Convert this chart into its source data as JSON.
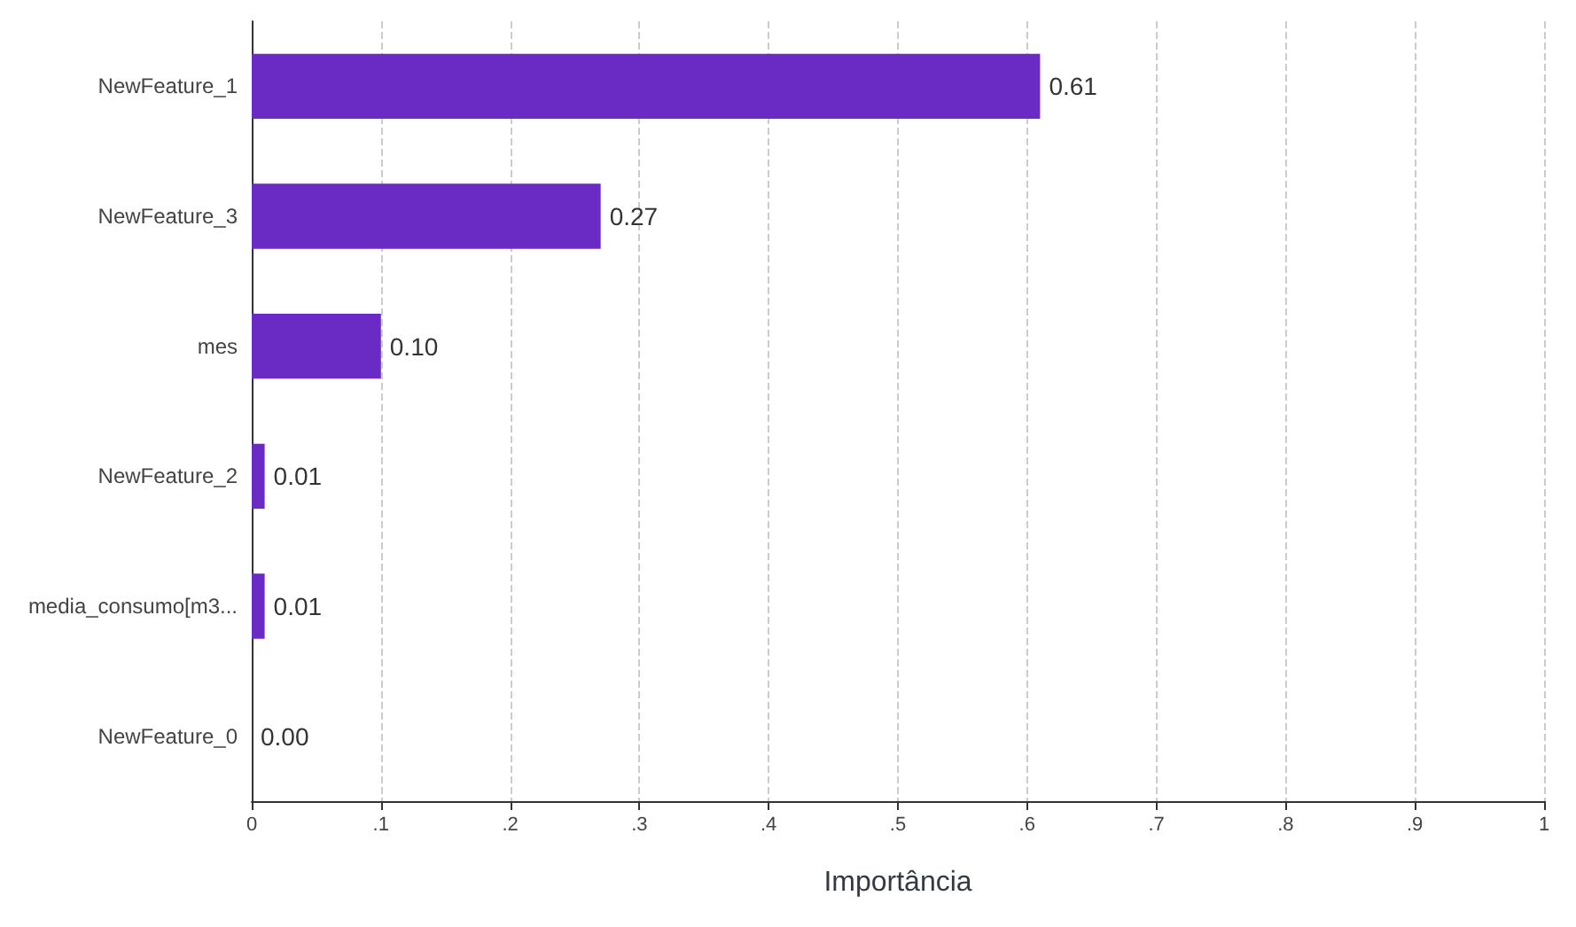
{
  "chart_data": {
    "type": "bar",
    "orientation": "horizontal",
    "xlabel": "Importância",
    "categories": [
      "NewFeature_1",
      "NewFeature_3",
      "mes",
      "NewFeature_2",
      "media_consumo[m3...",
      "NewFeature_0"
    ],
    "values": [
      0.61,
      0.27,
      0.1,
      0.01,
      0.01,
      0.0
    ],
    "value_labels": [
      "0.61",
      "0.27",
      "0.10",
      "0.01",
      "0.01",
      "0.00"
    ],
    "color": "#6a2bc4",
    "xlim": [
      0,
      1
    ],
    "xticks": [
      0,
      {
        "value": 0.1,
        "label": ".1"
      },
      {
        "value": 0.2,
        "label": ".2"
      },
      {
        "value": 0.3,
        "label": ".3"
      },
      {
        "value": 0.4,
        "label": ".4"
      },
      {
        "value": 0.5,
        "label": ".5"
      },
      {
        "value": 0.6,
        "label": ".6"
      },
      {
        "value": 0.7,
        "label": ".7"
      },
      {
        "value": 0.8,
        "label": ".8"
      },
      {
        "value": 0.9,
        "label": ".9"
      },
      1
    ],
    "grid": "x"
  }
}
